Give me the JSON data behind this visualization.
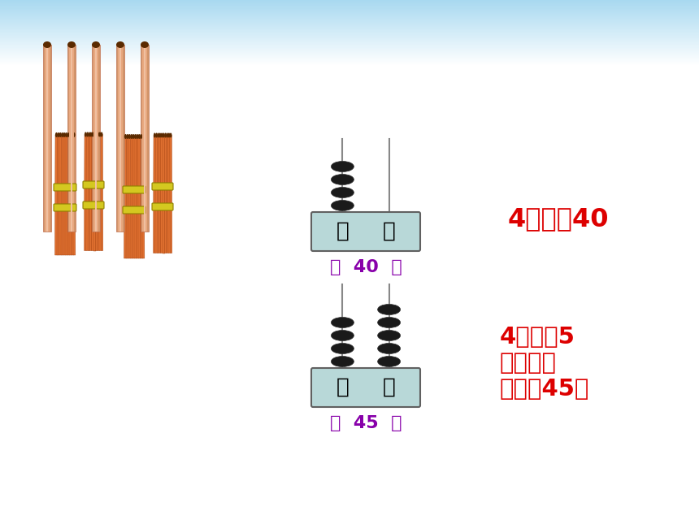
{
  "bg_color": "#ffffff",
  "header_top_color": "#a8d8f0",
  "header_bot_color": "#d0ecf8",
  "stick_color": "#E07030",
  "stick_edge_color": "#A04010",
  "stick_cap_color": "#5a2a00",
  "stick_single_color": "#D2956A",
  "stick_single_edge": "#C07050",
  "band_color": "#D4C820",
  "band_edge_color": "#908000",
  "abacus_bg": "#b8d8d8",
  "abacus_border": "#606060",
  "bead_color": "#1a1a1a",
  "bead_edge_color": "#333333",
  "rod_color": "#888888",
  "text_color_red": "#DD0000",
  "text_color_purple": "#8800AA",
  "text_color_black": "#000000",
  "label1": "4个十是40",
  "label2_line1": "4个十和5",
  "label2_line2": "个一合起",
  "label2_line3": "来是（45）",
  "value1": "（  40  ）",
  "value2": "（  45  ）",
  "abacus_label_shi": "十",
  "abacus_label_ge": "个"
}
